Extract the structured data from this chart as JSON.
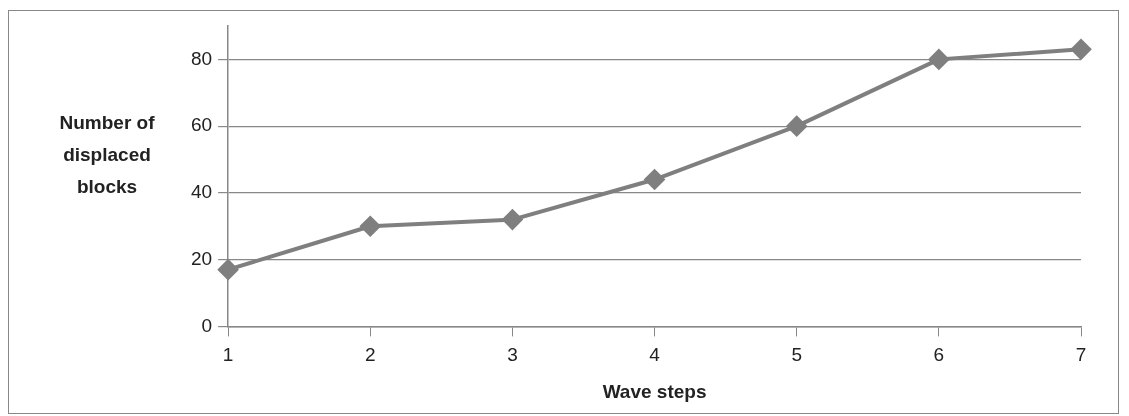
{
  "chart_data": {
    "type": "line",
    "xlabel": "Wave steps",
    "ylabel": "Number of displaced blocks",
    "x": [
      1,
      2,
      3,
      4,
      5,
      6,
      7
    ],
    "series": [
      {
        "color": "#7f7f7f",
        "values": [
          17,
          30,
          32,
          44,
          60,
          80,
          83
        ]
      }
    ],
    "xlim": [
      1,
      7
    ],
    "xticks": [
      1,
      2,
      3,
      4,
      5,
      6,
      7
    ],
    "ylim": [
      0,
      90
    ],
    "yticks": [
      0,
      20,
      40,
      60,
      80
    ],
    "grid": "y",
    "legend": false,
    "marker": "diamond",
    "line_style": "solid"
  }
}
